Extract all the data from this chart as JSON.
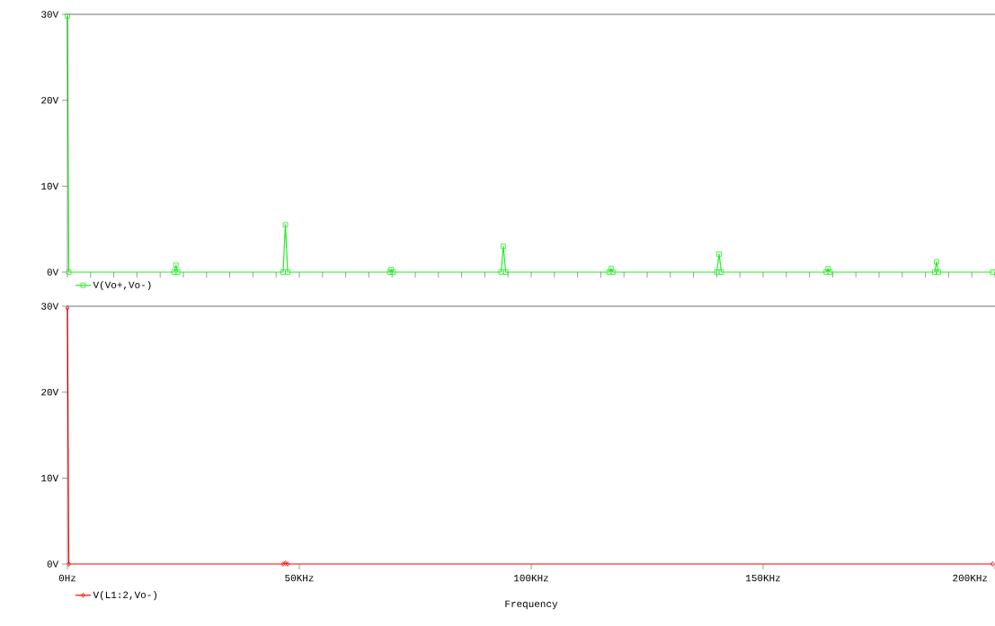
{
  "chart_data": [
    {
      "type": "line",
      "xlim": [
        0,
        200
      ],
      "ylim": [
        0,
        30
      ],
      "yticks": [
        {
          "value": 0,
          "label": "0V"
        },
        {
          "value": 10,
          "label": "10V"
        },
        {
          "value": 20,
          "label": "20V"
        },
        {
          "value": 30,
          "label": "30V"
        }
      ],
      "tick_labels": "y",
      "legend": "bottom left",
      "marker": "square",
      "line_style": "solid",
      "grid": false,
      "series": [
        {
          "name": "V(Vo+,Vo-)",
          "color": "#22ee22",
          "x": [
            0,
            0.3,
            23,
            23.4,
            23.8,
            46.5,
            47,
            47.5,
            69.5,
            69.8,
            70.2,
            93.5,
            94,
            94.5,
            116.8,
            117.2,
            117.6,
            140,
            140.5,
            141,
            163.6,
            164,
            164.4,
            187,
            187.4,
            187.8,
            199.5
          ],
          "values": [
            29.8,
            0,
            0,
            0.8,
            0,
            0,
            5.5,
            0,
            0,
            0.3,
            0,
            0,
            3.0,
            0,
            0,
            0.4,
            0,
            0,
            2.1,
            0,
            0,
            0.4,
            0,
            0,
            1.2,
            0,
            0
          ]
        }
      ]
    },
    {
      "type": "line",
      "xlim": [
        0,
        200
      ],
      "ylim": [
        0,
        30
      ],
      "xlabel": "Frequency",
      "xticks": [
        {
          "value": 0,
          "label": "0Hz"
        },
        {
          "value": 50,
          "label": "50KHz"
        },
        {
          "value": 100,
          "label": "100KHz"
        },
        {
          "value": 150,
          "label": "150KHz"
        },
        {
          "value": 200,
          "label": "200KHz"
        }
      ],
      "yticks": [
        {
          "value": 0,
          "label": "0V"
        },
        {
          "value": 10,
          "label": "10V"
        },
        {
          "value": 20,
          "label": "20V"
        },
        {
          "value": 30,
          "label": "30V"
        }
      ],
      "legend": "bottom left",
      "marker": "diamond",
      "line_style": "solid",
      "grid": false,
      "series": [
        {
          "name": "V(L1:2,Vo-)",
          "color": "#ff0000",
          "x": [
            0,
            0.3,
            46.5,
            47,
            47.5,
            199.5
          ],
          "values": [
            29.8,
            0,
            0,
            0.1,
            0,
            0
          ]
        }
      ]
    }
  ]
}
